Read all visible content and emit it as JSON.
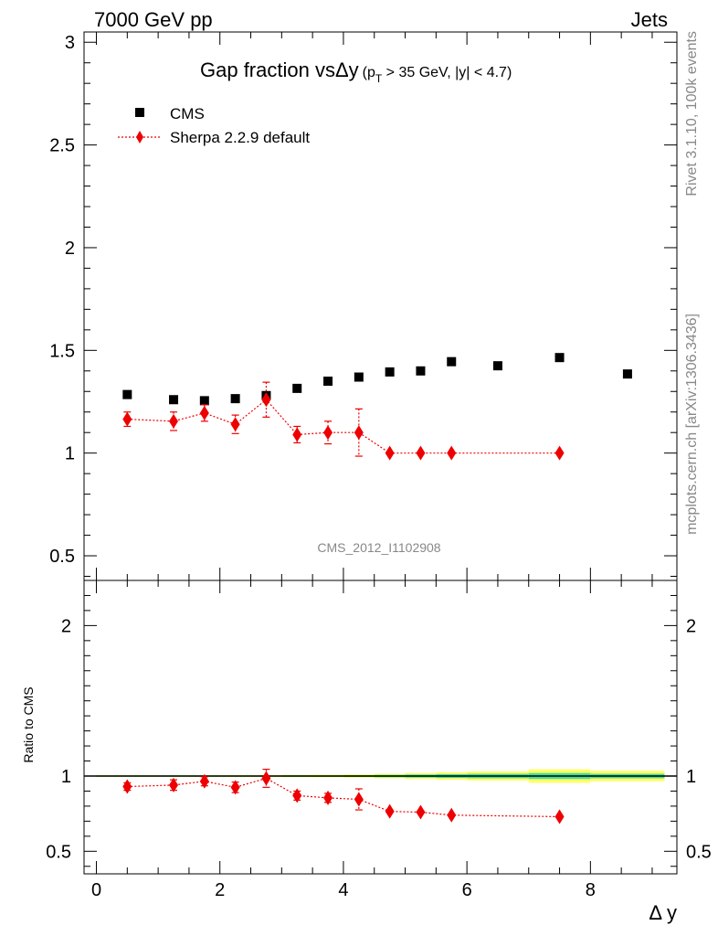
{
  "header": {
    "left": "7000 GeV pp",
    "right": "Jets"
  },
  "side_labels": {
    "rivet": "Rivet 3.1.10,  100k events",
    "mcplots": "mcplots.cern.ch [arXiv:1306.3436]"
  },
  "chart_data": {
    "type": "scatter",
    "title": "Gap fraction vsΔy",
    "title_cut": "(p_T > 35 GeV, |y| < 4.7)",
    "title_cut_parts": {
      "p": "(p",
      "sub": "T",
      "rest": " > 35 GeV, |y| < 4.7)"
    },
    "analysis_tag": "CMS_2012_I1102908",
    "xlabel": "Δ y",
    "ratio_ylabel": "Ratio to CMS",
    "xlim": [
      -0.2,
      9.4
    ],
    "ylim": [
      0.38,
      3.05
    ],
    "ratio_ylim": [
      0.35,
      2.3
    ],
    "x_ticks": [
      0,
      2,
      4,
      6,
      8
    ],
    "y_ticks": [
      0.5,
      1,
      1.5,
      2,
      2.5,
      3
    ],
    "y_tick_labels": [
      "0.5",
      "1",
      "1.5",
      "2",
      "2.5",
      "3"
    ],
    "ratio_y_ticks": [
      0.5,
      1,
      2
    ],
    "ratio_y_tick_labels": [
      "0.5",
      "1",
      "2"
    ],
    "legend_placement": "top-left",
    "series": [
      {
        "name": "CMS",
        "color": "#000000",
        "marker": "square",
        "x": [
          0.5,
          1.25,
          1.75,
          2.25,
          2.75,
          3.25,
          3.75,
          4.25,
          4.75,
          5.25,
          5.75,
          6.5,
          7.5,
          8.6
        ],
        "y": [
          1.285,
          1.26,
          1.255,
          1.265,
          1.28,
          1.315,
          1.35,
          1.37,
          1.395,
          1.4,
          1.445,
          1.425,
          1.465,
          1.385
        ]
      },
      {
        "name": "Sherpa 2.2.9 default",
        "color": "#ee0000",
        "marker": "diamond",
        "line": "dotted",
        "x": [
          0.5,
          1.25,
          1.75,
          2.25,
          2.75,
          3.25,
          3.75,
          4.25,
          4.75,
          5.25,
          5.75,
          7.5
        ],
        "y": [
          1.165,
          1.155,
          1.195,
          1.14,
          1.26,
          1.09,
          1.1,
          1.1,
          1.0,
          1.0,
          1.0,
          1.0
        ],
        "err": [
          0.035,
          0.045,
          0.04,
          0.045,
          0.085,
          0.04,
          0.055,
          0.115,
          0.0,
          0.0,
          0.0,
          0.0
        ]
      }
    ],
    "ratio": {
      "x": [
        0.5,
        1.25,
        1.75,
        2.25,
        2.75,
        3.25,
        3.75,
        4.25,
        4.75,
        5.25,
        5.75,
        7.5
      ],
      "y": [
        0.93,
        0.94,
        0.965,
        0.925,
        0.985,
        0.87,
        0.855,
        0.845,
        0.765,
        0.76,
        0.74,
        0.73
      ],
      "err": [
        0.025,
        0.035,
        0.03,
        0.035,
        0.06,
        0.03,
        0.03,
        0.07,
        0.0,
        0.0,
        0.0,
        0.0
      ],
      "band_bins": [
        {
          "lo": 0.0,
          "hi": 1.0,
          "stat": 0.004,
          "tot": 0.006
        },
        {
          "lo": 1.0,
          "hi": 1.5,
          "stat": 0.004,
          "tot": 0.006
        },
        {
          "lo": 1.5,
          "hi": 2.0,
          "stat": 0.004,
          "tot": 0.006
        },
        {
          "lo": 2.0,
          "hi": 2.5,
          "stat": 0.004,
          "tot": 0.007
        },
        {
          "lo": 2.5,
          "hi": 3.0,
          "stat": 0.004,
          "tot": 0.007
        },
        {
          "lo": 3.0,
          "hi": 3.5,
          "stat": 0.005,
          "tot": 0.008
        },
        {
          "lo": 3.5,
          "hi": 4.0,
          "stat": 0.005,
          "tot": 0.009
        },
        {
          "lo": 4.0,
          "hi": 4.5,
          "stat": 0.006,
          "tot": 0.011
        },
        {
          "lo": 4.5,
          "hi": 5.0,
          "stat": 0.008,
          "tot": 0.015
        },
        {
          "lo": 5.0,
          "hi": 5.5,
          "stat": 0.01,
          "tot": 0.02
        },
        {
          "lo": 5.5,
          "hi": 6.0,
          "stat": 0.013,
          "tot": 0.025
        },
        {
          "lo": 6.0,
          "hi": 7.0,
          "stat": 0.015,
          "tot": 0.03
        },
        {
          "lo": 7.0,
          "hi": 8.0,
          "stat": 0.02,
          "tot": 0.045
        },
        {
          "lo": 8.0,
          "hi": 9.2,
          "stat": 0.015,
          "tot": 0.035
        }
      ],
      "band_colors": {
        "stat": "#44dd99",
        "tot": "#ffff66"
      }
    }
  }
}
